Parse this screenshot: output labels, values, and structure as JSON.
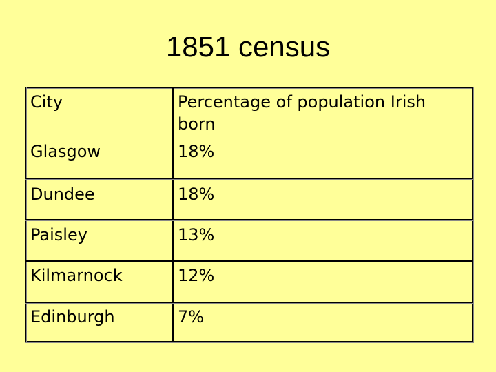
{
  "title": "1851 census",
  "table": {
    "header": [
      "City",
      "Percentage of population Irish born"
    ],
    "rows": [
      [
        "Glasgow",
        "18%"
      ],
      [
        "Dundee",
        "18%"
      ],
      [
        "Paisley",
        "13%"
      ],
      [
        "Kilmarnock",
        "12%"
      ],
      [
        "Edinburgh",
        "7%"
      ]
    ]
  }
}
